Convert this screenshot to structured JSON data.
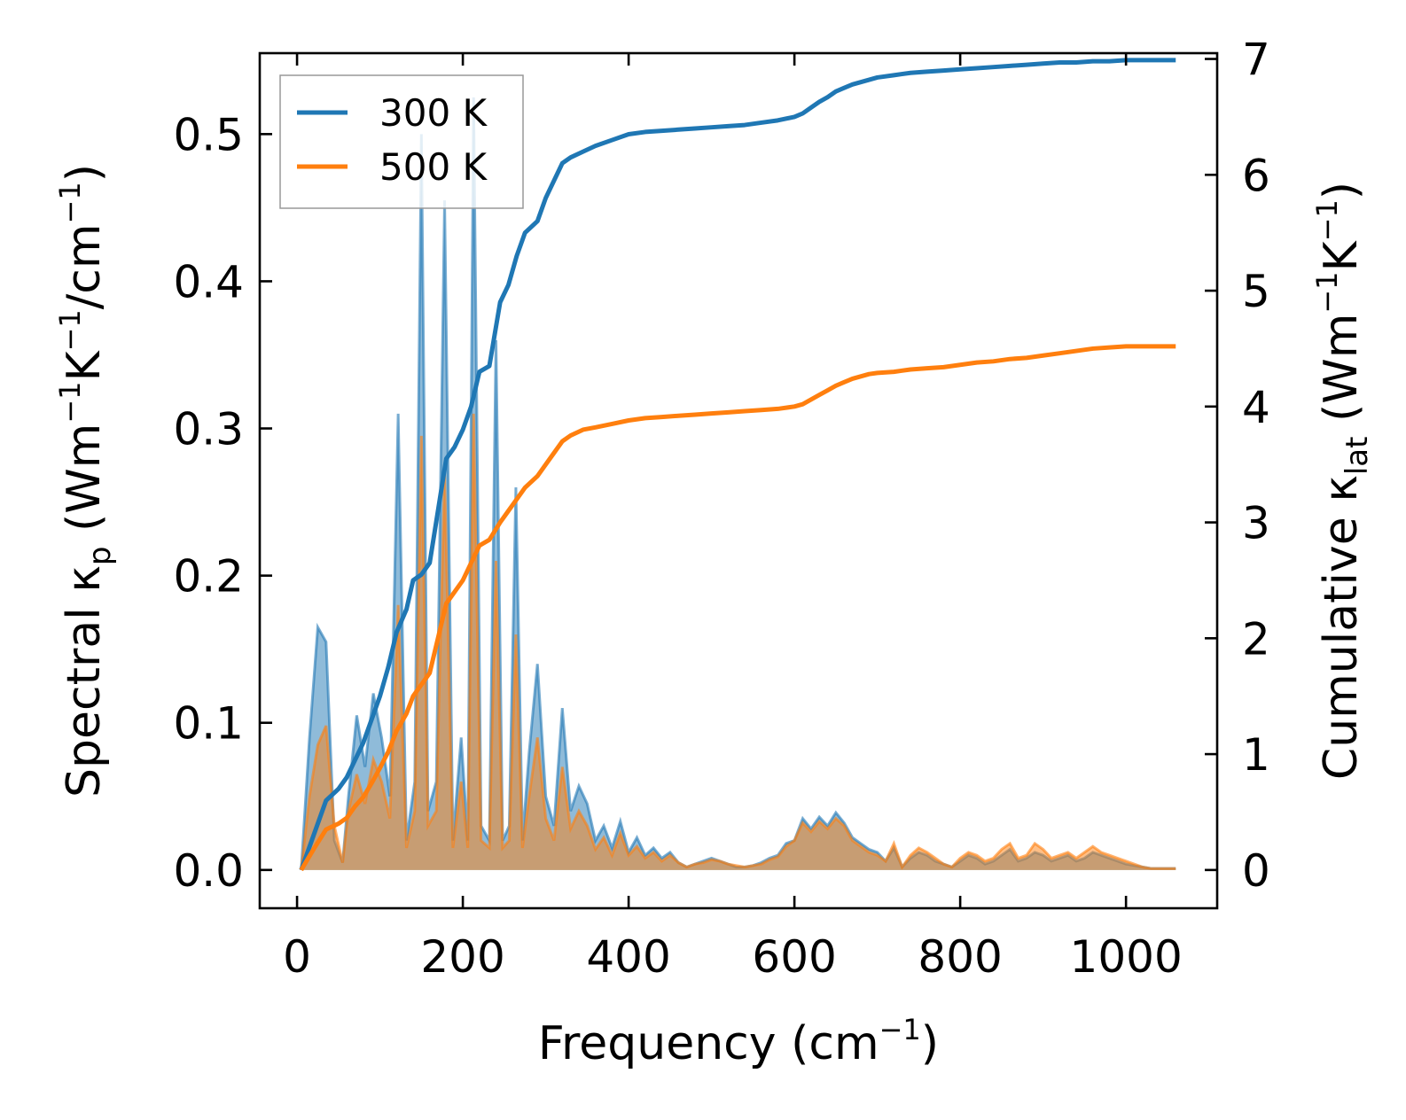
{
  "chart_data": {
    "type": "line",
    "xlabel": "Frequency (cm",
    "xlabel_sup": "−1",
    "xlabel_close": ")",
    "ylabel_left": {
      "pre": "Spectral κ",
      "sub": "p",
      "units_open": " (Wm",
      "sup1": "−1",
      "mid": "K",
      "sup2": "−1",
      "slash": "/cm",
      "sup3": "−1",
      "close": ")"
    },
    "ylabel_right": {
      "pre": "Cumulative κ",
      "sub": "lat",
      "units_open": " (Wm",
      "sup1": "−1",
      "mid": "K",
      "sup2": "−1",
      "close": ")"
    },
    "xlim": [
      -45,
      1110
    ],
    "ylim_left": [
      -0.026,
      0.555
    ],
    "ylim_right": [
      -0.33,
      7.05
    ],
    "xticks": [
      0,
      200,
      400,
      600,
      800,
      1000
    ],
    "xtick_labels": [
      "0",
      "200",
      "400",
      "600",
      "800",
      "1000"
    ],
    "yticks_left": [
      0.0,
      0.1,
      0.2,
      0.3,
      0.4,
      0.5
    ],
    "ytick_labels_left": [
      "0.0",
      "0.1",
      "0.2",
      "0.3",
      "0.4",
      "0.5"
    ],
    "yticks_right": [
      0,
      1,
      2,
      3,
      4,
      5,
      6,
      7
    ],
    "ytick_labels_right": [
      "0",
      "1",
      "2",
      "3",
      "4",
      "5",
      "6",
      "7"
    ],
    "legend": {
      "position": "upper-left",
      "entries": [
        "300 K",
        "500 K"
      ]
    },
    "colors": {
      "s300": "#1f77b4",
      "s500": "#ff7f0e",
      "axis": "#000000",
      "legend_border": "#999999"
    },
    "spectral": {
      "x": [
        5,
        15,
        25,
        35,
        45,
        55,
        62,
        72,
        82,
        92,
        102,
        112,
        122,
        132,
        142,
        150,
        158,
        168,
        178,
        188,
        198,
        206,
        213,
        222,
        232,
        240,
        248,
        256,
        264,
        272,
        280,
        290,
        300,
        310,
        320,
        330,
        340,
        350,
        360,
        370,
        380,
        390,
        400,
        410,
        420,
        430,
        440,
        450,
        460,
        470,
        480,
        490,
        500,
        510,
        520,
        530,
        540,
        550,
        560,
        570,
        580,
        590,
        600,
        610,
        620,
        630,
        640,
        650,
        660,
        670,
        680,
        690,
        700,
        710,
        720,
        730,
        740,
        750,
        760,
        770,
        780,
        790,
        800,
        810,
        820,
        830,
        840,
        850,
        860,
        870,
        880,
        890,
        900,
        910,
        920,
        930,
        940,
        950,
        960,
        970,
        980,
        990,
        1000,
        1010,
        1020,
        1030,
        1040,
        1050,
        1060
      ],
      "s300": [
        0.0,
        0.09,
        0.165,
        0.155,
        0.02,
        0.005,
        0.05,
        0.105,
        0.07,
        0.12,
        0.09,
        0.05,
        0.31,
        0.02,
        0.06,
        0.5,
        0.04,
        0.06,
        0.455,
        0.02,
        0.09,
        0.02,
        0.525,
        0.03,
        0.02,
        0.36,
        0.02,
        0.03,
        0.26,
        0.02,
        0.08,
        0.14,
        0.05,
        0.03,
        0.11,
        0.04,
        0.057,
        0.045,
        0.02,
        0.03,
        0.015,
        0.033,
        0.012,
        0.022,
        0.01,
        0.015,
        0.008,
        0.012,
        0.005,
        0.002,
        0.004,
        0.006,
        0.008,
        0.006,
        0.004,
        0.002,
        0.002,
        0.003,
        0.005,
        0.008,
        0.01,
        0.018,
        0.02,
        0.035,
        0.028,
        0.036,
        0.03,
        0.039,
        0.032,
        0.022,
        0.018,
        0.014,
        0.012,
        0.006,
        0.015,
        0.002,
        0.008,
        0.012,
        0.01,
        0.006,
        0.004,
        0.002,
        0.006,
        0.01,
        0.008,
        0.004,
        0.006,
        0.01,
        0.014,
        0.006,
        0.008,
        0.012,
        0.01,
        0.006,
        0.008,
        0.01,
        0.006,
        0.008,
        0.012,
        0.01,
        0.008,
        0.006,
        0.004,
        0.003,
        0.002,
        0.001,
        0.001,
        0.001,
        0.001
      ],
      "s500": [
        0.0,
        0.05,
        0.085,
        0.098,
        0.03,
        0.005,
        0.04,
        0.065,
        0.045,
        0.075,
        0.06,
        0.035,
        0.18,
        0.015,
        0.04,
        0.295,
        0.03,
        0.04,
        0.27,
        0.015,
        0.06,
        0.015,
        0.31,
        0.02,
        0.015,
        0.21,
        0.015,
        0.02,
        0.16,
        0.015,
        0.05,
        0.09,
        0.035,
        0.02,
        0.07,
        0.028,
        0.04,
        0.03,
        0.014,
        0.022,
        0.01,
        0.025,
        0.01,
        0.016,
        0.008,
        0.012,
        0.006,
        0.01,
        0.005,
        0.002,
        0.004,
        0.005,
        0.007,
        0.006,
        0.004,
        0.003,
        0.002,
        0.003,
        0.004,
        0.007,
        0.009,
        0.016,
        0.02,
        0.032,
        0.026,
        0.033,
        0.028,
        0.035,
        0.03,
        0.02,
        0.016,
        0.012,
        0.01,
        0.006,
        0.018,
        0.002,
        0.01,
        0.015,
        0.012,
        0.008,
        0.004,
        0.002,
        0.008,
        0.012,
        0.01,
        0.006,
        0.008,
        0.014,
        0.018,
        0.008,
        0.01,
        0.018,
        0.014,
        0.008,
        0.01,
        0.012,
        0.008,
        0.012,
        0.016,
        0.012,
        0.01,
        0.008,
        0.006,
        0.004,
        0.002,
        0.001,
        0.001,
        0.001,
        0.001
      ]
    },
    "cumulative": {
      "x": [
        5,
        20,
        35,
        50,
        60,
        70,
        80,
        90,
        100,
        110,
        120,
        132,
        140,
        150,
        160,
        170,
        180,
        190,
        200,
        210,
        220,
        232,
        245,
        255,
        265,
        275,
        290,
        300,
        310,
        320,
        330,
        345,
        360,
        380,
        400,
        420,
        440,
        460,
        480,
        500,
        520,
        540,
        560,
        580,
        600,
        610,
        620,
        630,
        640,
        650,
        660,
        670,
        680,
        690,
        700,
        720,
        740,
        760,
        780,
        800,
        820,
        840,
        860,
        880,
        900,
        920,
        940,
        960,
        980,
        1000,
        1020,
        1040,
        1060
      ],
      "c300": [
        0.0,
        0.3,
        0.6,
        0.7,
        0.8,
        0.95,
        1.1,
        1.3,
        1.5,
        1.75,
        2.05,
        2.25,
        2.5,
        2.55,
        2.65,
        3.1,
        3.55,
        3.65,
        3.8,
        4.0,
        4.3,
        4.35,
        4.9,
        5.05,
        5.3,
        5.5,
        5.6,
        5.8,
        5.95,
        6.1,
        6.15,
        6.2,
        6.25,
        6.3,
        6.35,
        6.37,
        6.38,
        6.39,
        6.4,
        6.41,
        6.42,
        6.43,
        6.45,
        6.47,
        6.5,
        6.53,
        6.58,
        6.63,
        6.67,
        6.72,
        6.75,
        6.78,
        6.8,
        6.82,
        6.84,
        6.86,
        6.88,
        6.89,
        6.9,
        6.91,
        6.92,
        6.93,
        6.94,
        6.95,
        6.96,
        6.97,
        6.97,
        6.98,
        6.98,
        6.99,
        6.99,
        6.99,
        6.99
      ],
      "c500": [
        0.0,
        0.18,
        0.35,
        0.4,
        0.45,
        0.55,
        0.63,
        0.75,
        0.88,
        1.02,
        1.2,
        1.35,
        1.5,
        1.6,
        1.7,
        2.0,
        2.3,
        2.4,
        2.5,
        2.65,
        2.8,
        2.85,
        3.0,
        3.1,
        3.2,
        3.3,
        3.4,
        3.5,
        3.6,
        3.7,
        3.75,
        3.8,
        3.82,
        3.85,
        3.88,
        3.9,
        3.91,
        3.92,
        3.93,
        3.94,
        3.95,
        3.96,
        3.97,
        3.98,
        4.0,
        4.02,
        4.06,
        4.1,
        4.14,
        4.18,
        4.21,
        4.24,
        4.26,
        4.28,
        4.29,
        4.3,
        4.32,
        4.33,
        4.34,
        4.36,
        4.38,
        4.39,
        4.41,
        4.42,
        4.44,
        4.46,
        4.48,
        4.5,
        4.51,
        4.52,
        4.52,
        4.52,
        4.52
      ]
    }
  }
}
